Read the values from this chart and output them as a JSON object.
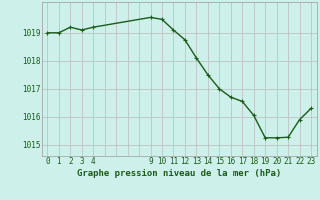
{
  "hours": [
    0,
    1,
    2,
    3,
    4,
    9,
    10,
    11,
    12,
    13,
    14,
    15,
    16,
    17,
    18,
    19,
    20,
    21,
    22,
    23
  ],
  "pressure": [
    1019.0,
    1019.0,
    1019.2,
    1019.1,
    1019.2,
    1019.55,
    1019.48,
    1019.1,
    1018.75,
    1018.1,
    1017.5,
    1017.0,
    1016.7,
    1016.55,
    1016.05,
    1015.25,
    1015.25,
    1015.27,
    1015.9,
    1016.3
  ],
  "line_color": "#1a5c1a",
  "marker": "+",
  "marker_size": 3,
  "marker_linewidth": 0.8,
  "background_color": "#cef0ea",
  "grid_color_major": "#bbbbbb",
  "grid_color_minor": "#dddddd",
  "xlabel": "Graphe pression niveau de la mer (hPa)",
  "xlabel_color": "#1a5c1a",
  "tick_color": "#1a5c1a",
  "ylim": [
    1014.6,
    1020.1
  ],
  "yticks": [
    1015,
    1016,
    1017,
    1018,
    1019
  ],
  "xlim": [
    -0.5,
    23.5
  ],
  "line_width": 1.0,
  "marker_color": "#1a5c1a",
  "tick_fontsize": 5.5,
  "xlabel_fontsize": 6.5
}
